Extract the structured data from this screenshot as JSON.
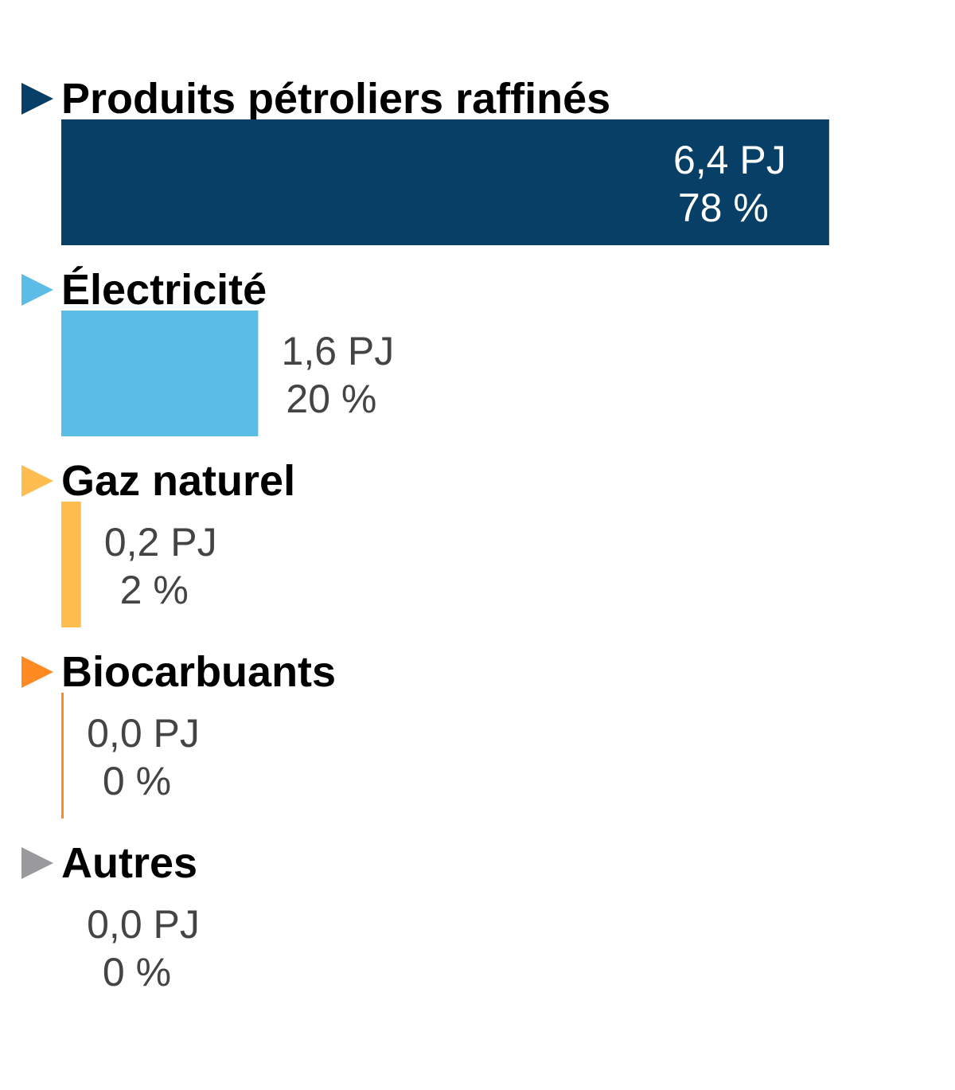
{
  "chart_data": {
    "type": "bar",
    "orientation": "horizontal",
    "title": "",
    "xlabel": "",
    "ylabel": "",
    "unit": "PJ",
    "grid": false,
    "legend": "none",
    "categories": [
      "Produits pétroliers raffinés",
      "Électricité",
      "Gaz naturel",
      "Biocarbuants",
      "Autres"
    ],
    "values": [
      6.4,
      1.6,
      0.2,
      0.0,
      0.0
    ],
    "percentages": [
      78,
      20,
      2,
      0,
      0
    ],
    "value_labels": [
      "6,4 PJ",
      "1,6 PJ",
      "0,2 PJ",
      "0,0 PJ",
      "0,0 PJ"
    ],
    "percent_labels": [
      "78 %",
      "20 %",
      "2 %",
      "0 %",
      "0 %"
    ],
    "colors": [
      "#083f66",
      "#5bbde6",
      "#ffbd4f",
      "#ff8a22",
      "#9a9a9e"
    ],
    "label_colors": [
      "#ffffff",
      "#444444",
      "#444444",
      "#444444",
      "#444444"
    ],
    "marker_icon": "right-triangle-icon"
  }
}
